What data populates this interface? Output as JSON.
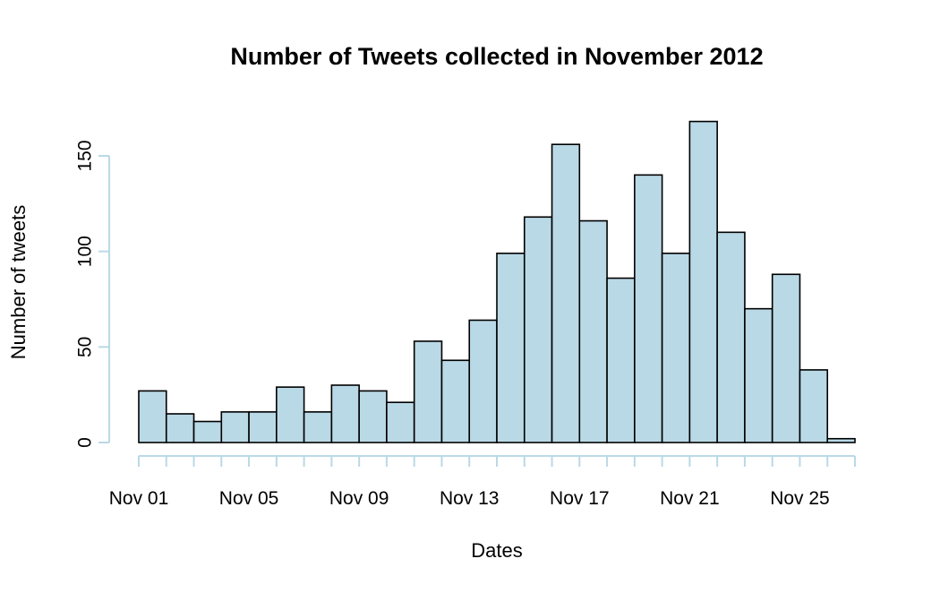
{
  "chart_data": {
    "type": "bar",
    "title": "Number of Tweets collected in November 2012",
    "xlabel": "Dates",
    "ylabel": "Number of tweets",
    "categories": [
      "Nov 01",
      "Nov 02",
      "Nov 03",
      "Nov 04",
      "Nov 05",
      "Nov 06",
      "Nov 07",
      "Nov 08",
      "Nov 09",
      "Nov 10",
      "Nov 11",
      "Nov 12",
      "Nov 13",
      "Nov 14",
      "Nov 15",
      "Nov 16",
      "Nov 17",
      "Nov 18",
      "Nov 19",
      "Nov 20",
      "Nov 21",
      "Nov 22",
      "Nov 23",
      "Nov 24",
      "Nov 25",
      "Nov 26"
    ],
    "values": [
      27,
      15,
      11,
      16,
      16,
      29,
      16,
      30,
      27,
      21,
      53,
      43,
      64,
      99,
      118,
      156,
      116,
      86,
      140,
      99,
      168,
      110,
      70,
      88,
      38,
      2
    ],
    "ylim": [
      0,
      175
    ],
    "yticks": [
      0,
      50,
      100,
      150
    ],
    "xtick_labels": [
      "Nov 01",
      "Nov 05",
      "Nov 09",
      "Nov 13",
      "Nov 17",
      "Nov 21",
      "Nov 25"
    ],
    "bar_color": "#bad9e6",
    "bar_stroke": "#000000",
    "axis_color": "#bad9e6",
    "grid": false
  }
}
